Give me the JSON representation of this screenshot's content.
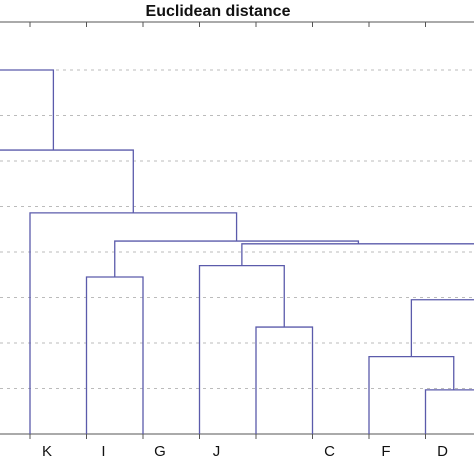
{
  "chart_data": {
    "type": "dendrogram",
    "title": "Euclidean distance",
    "leaves": [
      null,
      null,
      "K",
      "I",
      "G",
      "J",
      null,
      "C",
      "F",
      "D",
      null,
      null
    ],
    "merges": [
      {
        "children": [
          9,
          10
        ],
        "height": 0.97
      },
      {
        "children": [
          8,
          12
        ],
        "height": 1.7
      },
      {
        "children": [
          6,
          7
        ],
        "height": 2.35
      },
      {
        "children": [
          13,
          11
        ],
        "height": 2.95
      },
      {
        "children": [
          3,
          4
        ],
        "height": 3.45
      },
      {
        "children": [
          5,
          14
        ],
        "height": 3.7
      },
      {
        "children": [
          17,
          15
        ],
        "height": 4.18
      },
      {
        "children": [
          16,
          18
        ],
        "height": 4.24
      },
      {
        "children": [
          2,
          19
        ],
        "height": 4.86
      },
      {
        "children": [
          1,
          20
        ],
        "height": 6.24
      },
      {
        "children": [
          0,
          21
        ],
        "height": 8.0
      }
    ],
    "color": "#5b5bab",
    "ylim": [
      0,
      9
    ],
    "yticks": [
      1,
      2,
      3,
      4,
      5,
      6,
      7,
      8
    ],
    "grid": true
  }
}
